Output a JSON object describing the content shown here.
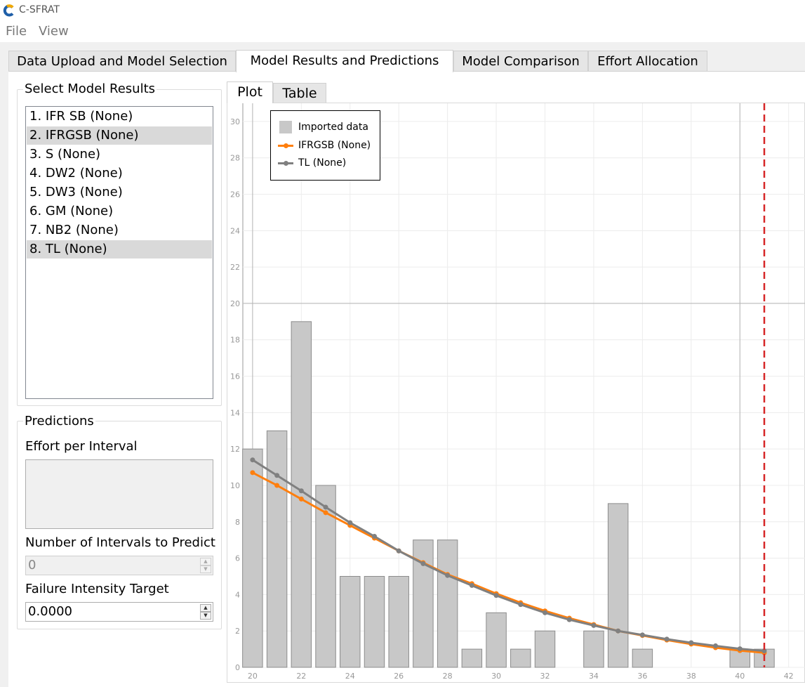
{
  "window": {
    "title": "C-SFRAT"
  },
  "menu": {
    "file": "File",
    "view": "View"
  },
  "tabs": [
    {
      "label": "Data Upload and Model Selection"
    },
    {
      "label": "Model Results and Predictions"
    },
    {
      "label": "Model Comparison"
    },
    {
      "label": "Effort Allocation"
    }
  ],
  "active_tab": "Model Results and Predictions",
  "model_results": {
    "title": "Select Model Results",
    "items": [
      {
        "label": "1. IFR SB (None)",
        "selected": false
      },
      {
        "label": "2. IFRGSB (None)",
        "selected": true
      },
      {
        "label": "3. S (None)",
        "selected": false
      },
      {
        "label": "4. DW2 (None)",
        "selected": false
      },
      {
        "label": "5. DW3 (None)",
        "selected": false
      },
      {
        "label": "6. GM (None)",
        "selected": false
      },
      {
        "label": "7. NB2 (None)",
        "selected": false
      },
      {
        "label": "8. TL (None)",
        "selected": true
      }
    ]
  },
  "predictions": {
    "title": "Predictions",
    "effort_label": "Effort per Interval",
    "intervals_label": "Number of Intervals to Predict",
    "intervals_value": "0",
    "target_label": "Failure Intensity Target",
    "target_value": "0.0000"
  },
  "subtabs": [
    {
      "label": "Plot"
    },
    {
      "label": "Table"
    }
  ],
  "colors": {
    "bar": "#c8c8c8",
    "ifrgsb": "#ff7f0e",
    "tl": "#808080",
    "prediction_line": "#d62728"
  },
  "legend": {
    "imported": "Imported data",
    "ifrgsb": "IFRGSB (None)",
    "tl": "TL (None)"
  },
  "chart_data": {
    "type": "bar",
    "legend_position": "top-left",
    "grid": true,
    "xlim": [
      19.6,
      42.7
    ],
    "ylim": [
      0,
      31
    ],
    "x_ticks": [
      20,
      22,
      24,
      26,
      28,
      30,
      32,
      34,
      36,
      38,
      40,
      42
    ],
    "y_ticks": [
      0,
      2,
      4,
      6,
      8,
      10,
      12,
      14,
      16,
      18,
      20,
      22,
      24,
      26,
      28,
      30
    ],
    "x": [
      20,
      21,
      22,
      23,
      24,
      25,
      26,
      27,
      28,
      29,
      30,
      31,
      32,
      33,
      34,
      35,
      36,
      37,
      38,
      39,
      40,
      41
    ],
    "series": [
      {
        "name": "Imported data",
        "type": "bar",
        "values": [
          12,
          13,
          19,
          10,
          5,
          5,
          5,
          7,
          7,
          1,
          3,
          1,
          2,
          0,
          2,
          9,
          1,
          0,
          0,
          0,
          1,
          1
        ]
      },
      {
        "name": "IFRGSB (None)",
        "type": "line",
        "values": [
          10.7,
          10.0,
          9.25,
          8.5,
          7.8,
          7.1,
          6.4,
          5.75,
          5.1,
          4.6,
          4.05,
          3.55,
          3.1,
          2.7,
          2.35,
          2.0,
          1.75,
          1.5,
          1.28,
          1.08,
          0.92,
          0.8
        ]
      },
      {
        "name": "TL (None)",
        "type": "line",
        "values": [
          11.4,
          10.55,
          9.7,
          8.8,
          7.95,
          7.2,
          6.4,
          5.7,
          5.05,
          4.5,
          3.95,
          3.45,
          3.0,
          2.62,
          2.3,
          2.0,
          1.78,
          1.55,
          1.35,
          1.18,
          1.02,
          0.9
        ]
      }
    ],
    "prediction_boundary_x": 41,
    "reference_lines": {
      "x": [
        20,
        40
      ],
      "y": [
        20
      ]
    }
  }
}
